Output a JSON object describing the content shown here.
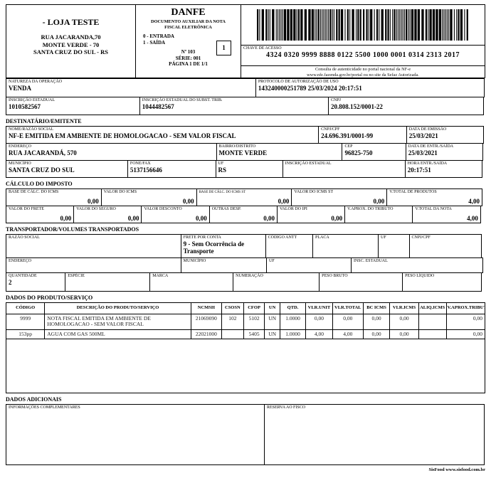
{
  "header": {
    "emitter": {
      "name": "- LOJA TESTE",
      "addr1": "RUA JACARANDA,70",
      "addr2": "MONTE VERDE - 70",
      "addr3": "SANTA CRUZ DO SUL - RS"
    },
    "danfe": {
      "title": "DANFE",
      "subtitle": "DOCUMENTO AUXILIAR DA NOTA FISCAL ELETRÔNICA",
      "entry": "0 - ENTRADA",
      "exit": "1 - SAÍDA",
      "type": "1",
      "number": "Nº 103",
      "series": "SÉRIE: 001",
      "page": "PÁGINA 1 DE 1/1"
    },
    "access_key": {
      "label": "CHAVE DE ACESSO",
      "value": "4324 0320 9999 8888 0122 5500 1000 0001 0314 2313 2017",
      "consult1": "Consulta de autenticidade no portal nacional da NF-e",
      "consult2": "www.nfe.fazenda.gov.br/portal ou no site da Sefaz Autorizada."
    }
  },
  "operation": {
    "natureza": {
      "label": "NATUREZA DA OPERAÇÃO",
      "value": "VENDA"
    },
    "protocolo": {
      "label": "PROTOCOLO DE AUTORIZAÇÃO DE USO",
      "value": "143240000251789 25/03/2024 20:17:51"
    },
    "ie": {
      "label": "INSCRIÇÃO ESTADUAL",
      "value": "1010582567"
    },
    "ie_subst": {
      "label": "INSCRIÇÃO ESTADUAL DO SUBST. TRIB.",
      "value": "1044482567"
    },
    "cnpj": {
      "label": "CNPJ",
      "value": "20.808.152/0001-22"
    }
  },
  "destinatario": {
    "title": "DESTINATÁRIO/EMITENTE",
    "nome": {
      "label": "NOME/RAZÃO SOCIAL",
      "value": "NF-E EMITIDA EM AMBIENTE DE HOMOLOGACAO - SEM VALOR FISCAL"
    },
    "cnpj": {
      "label": "CNPJ/CPF",
      "value": "24.696.391/0001-99"
    },
    "emissao": {
      "label": "DATA DE EMISSÃO",
      "value": "25/03/2021"
    },
    "endereco": {
      "label": "ENDEREÇO",
      "value": "RUA JACARANDÁ, 570"
    },
    "bairro": {
      "label": "BAIRRO/DISTRITO",
      "value": "MONTE VERDE"
    },
    "cep": {
      "label": "CEP",
      "value": "96825-750"
    },
    "entrada_saida": {
      "label": "DATA DE ENTR./SAÍDA",
      "value": "25/03/2021"
    },
    "municipio": {
      "label": "MUNICÍPIO",
      "value": "SANTA CRUZ DO SUL"
    },
    "fone": {
      "label": "FONE/FAX",
      "value": "5137156646"
    },
    "uf": {
      "label": "UF",
      "value": "RS"
    },
    "inscricao": {
      "label": "INSCRIÇÃO ESTADUAL",
      "value": ""
    },
    "hora": {
      "label": "HORA ENTR./SAÍDA",
      "value": "20:17:51"
    }
  },
  "imposto": {
    "title": "CÁLCULO DO IMPOSTO",
    "row1": [
      {
        "label": "BASE DE CÁLC. DO ICMS",
        "value": "0,00"
      },
      {
        "label": "VALOR DO ICMS",
        "value": "0,00"
      },
      {
        "label": "BASE DE CÁLC. DO ICMS ST",
        "value": "0,00"
      },
      {
        "label": "VALOR DO ICMS ST",
        "value": "0,00"
      },
      {
        "label": "V.TOTAL DE PRODUTOS",
        "value": "4,00"
      }
    ],
    "row2": [
      {
        "label": "VALOR DO FRETE",
        "value": "0,00"
      },
      {
        "label": "VALOR DO SEGURO",
        "value": "0,00"
      },
      {
        "label": "VALOR DESCONTO",
        "value": "0,00"
      },
      {
        "label": "OUTRAS DESP.",
        "value": "0,00"
      },
      {
        "label": "VALOR DO IPI",
        "value": "0,00"
      },
      {
        "label": "V.APROX. DO TRIBUTO",
        "value": ""
      },
      {
        "label": "V.TOTAL DA NOTA",
        "value": "4,00"
      }
    ]
  },
  "transporte": {
    "title": "TRANSPORTADOR/VOLUMES TRANSPORTADOS",
    "razao": {
      "label": "RAZÃO SOCIAL",
      "value": ""
    },
    "frete": {
      "label": "FRETE POR CONTA",
      "value": "9 - Sem Ocorrência de Transporte"
    },
    "antt": {
      "label": "CÓDIGO ANTT",
      "value": ""
    },
    "placa": {
      "label": "PLACA",
      "value": ""
    },
    "uf1": {
      "label": "UF",
      "value": ""
    },
    "cnpj": {
      "label": "CNPJ/CPF",
      "value": ""
    },
    "endereco": {
      "label": "ENDEREÇO",
      "value": ""
    },
    "municipio": {
      "label": "MUNICÍPIO",
      "value": ""
    },
    "uf2": {
      "label": "UF",
      "value": ""
    },
    "ie": {
      "label": "INSC. ESTADUAL",
      "value": ""
    },
    "quantidade": {
      "label": "QUANTIDADE",
      "value": "2"
    },
    "especie": {
      "label": "ESPÉCIE",
      "value": ""
    },
    "marca": {
      "label": "MARCA",
      "value": ""
    },
    "numeracao": {
      "label": "NUMERAÇÃO",
      "value": ""
    },
    "peso_bruto": {
      "label": "PESO BRUTO",
      "value": ""
    },
    "peso_liquido": {
      "label": "PESO LÍQUIDO",
      "value": ""
    }
  },
  "produtos": {
    "title": "DADOS DO PRODUTO/SERVIÇO",
    "columns": [
      "CÓDIGO",
      "DESCRIÇÃO DO PRODUTO/SERVIÇO",
      "NCMSH",
      "CSOSN",
      "CFOP",
      "UN",
      "QTD.",
      "VLR.UNIT",
      "VLR.TOTAL",
      "BC ICMS",
      "VLR.ICMS",
      "ALIQ.ICMS",
      "V.APROX.TRIBUTOS"
    ],
    "rows": [
      [
        "9999",
        "NOTA FISCAL EMITIDA EM AMBIENTE DE HOMOLOGACAO - SEM VALOR FISCAL",
        "21069090",
        "102",
        "5102",
        "UN",
        "1.0000",
        "0,00",
        "0,00",
        "0,00",
        "0,00",
        "",
        "0,00"
      ],
      [
        "153pp",
        "AGUA COM GAS 500ML",
        "22021000",
        "",
        "5405",
        "UN",
        "1.0000",
        "4,00",
        "4,00",
        "0,00",
        "0,00",
        "",
        "0,00"
      ]
    ]
  },
  "adicionais": {
    "title": "DADOS ADICIONAIS",
    "info_label": "INFORMAÇÕES COMPLEMENTARES",
    "info_value": "",
    "fisco_label": "RESERVA AO FISCO",
    "fisco_value": ""
  },
  "footer": {
    "credit": "SisFood www.sisfood.com.br"
  },
  "colors": {
    "ink": "#000000",
    "paper": "#ffffff"
  }
}
